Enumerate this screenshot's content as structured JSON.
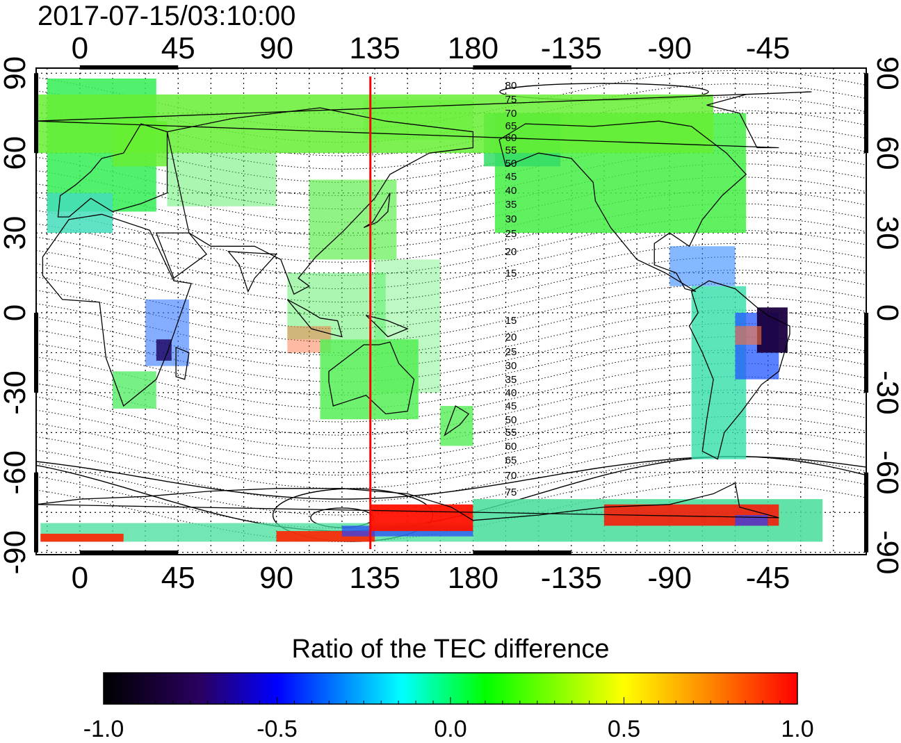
{
  "title": "2017-07-15/03:10:00",
  "map": {
    "top_longitude_labels": [
      "0",
      "45",
      "90",
      "135",
      "180",
      "-135",
      "-90",
      "-45"
    ],
    "bottom_longitude_labels": [
      "0",
      "45",
      "90",
      "135",
      "180",
      "-135",
      "-90",
      "-45"
    ],
    "left_latitude_labels": [
      "90",
      "60",
      "30",
      "0",
      "-30",
      "-60",
      "-90"
    ],
    "right_latitude_labels": [
      "90",
      "60",
      "30",
      "0",
      "-30",
      "-60",
      "-90"
    ],
    "marker_longitude": 133,
    "marker_color": "#ff0000",
    "contour_labels_north": [
      "80",
      "75",
      "70",
      "65",
      "60",
      "55",
      "50",
      "45",
      "40",
      "35",
      "30",
      "25",
      "20",
      "15"
    ],
    "contour_labels_south": [
      "15",
      "20",
      "25",
      "30",
      "35",
      "40",
      "45",
      "50",
      "55",
      "60",
      "65",
      "70",
      "75"
    ]
  },
  "colorbar": {
    "title": "Ratio of the TEC difference",
    "tick_labels": [
      "-1.0",
      "-0.5",
      "0.0",
      "0.5",
      "1.0"
    ],
    "min": -1.0,
    "max": 1.0,
    "colors": [
      "#000000",
      "#2a0060",
      "#0000ff",
      "#00ffff",
      "#00ff00",
      "#ffff00",
      "#ff8000",
      "#ff0000"
    ]
  }
}
